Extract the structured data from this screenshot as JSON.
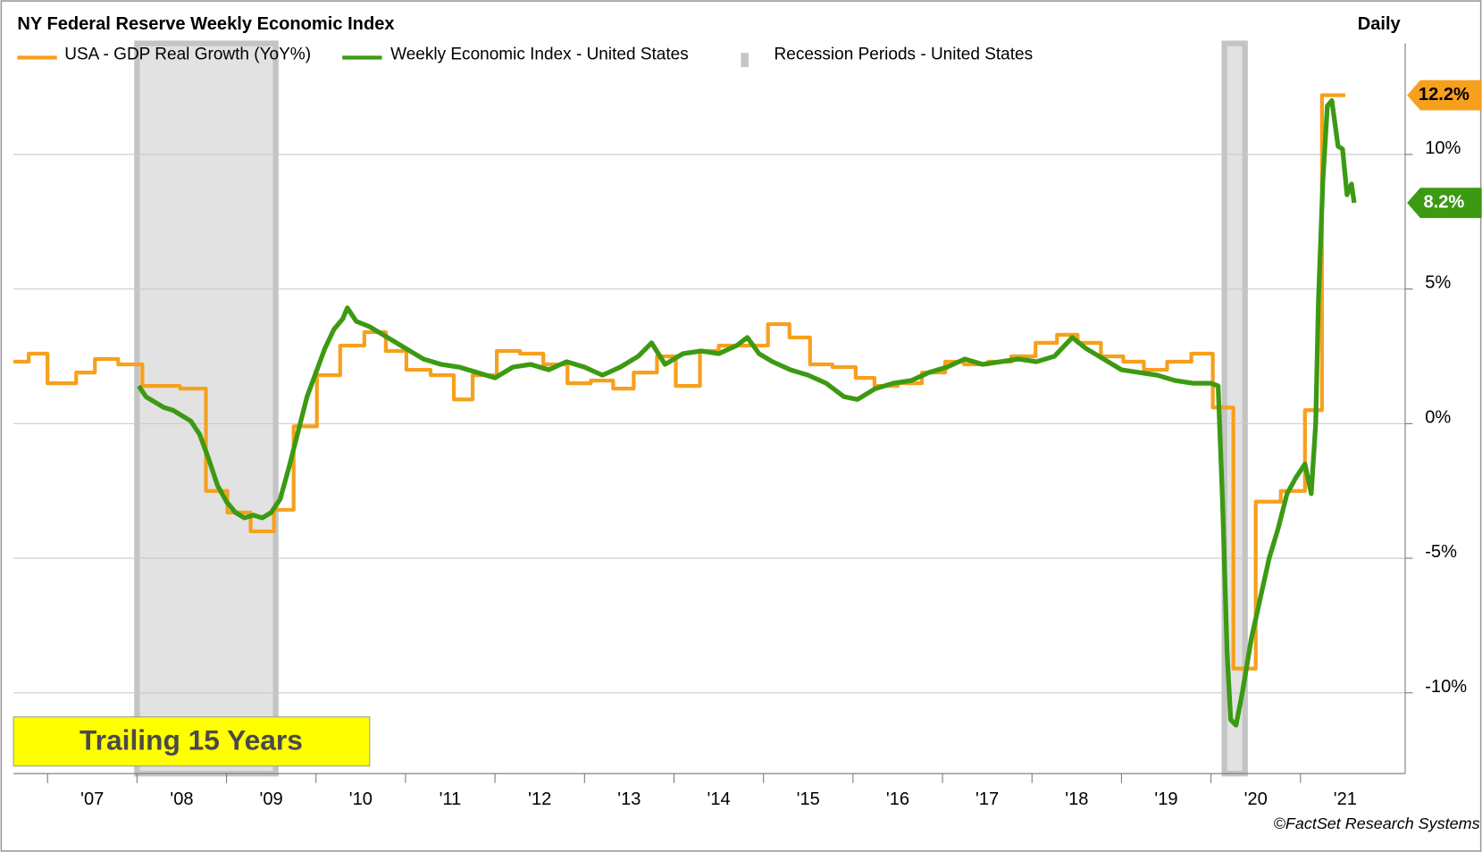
{
  "chart_data": {
    "type": "line",
    "title": "NY Federal Reserve Weekly Economic Index",
    "frequency": "Daily",
    "annotation": "Trailing 15 Years",
    "credit": "©FactSet Research Systems",
    "xlim": [
      2006.62,
      2022.17
    ],
    "ylim": [
      -13,
      15
    ],
    "xticks": [
      {
        "value": 2007,
        "label": "'07"
      },
      {
        "value": 2008,
        "label": "'08"
      },
      {
        "value": 2009,
        "label": "'09"
      },
      {
        "value": 2010,
        "label": "'10"
      },
      {
        "value": 2011,
        "label": "'11"
      },
      {
        "value": 2012,
        "label": "'12"
      },
      {
        "value": 2013,
        "label": "'13"
      },
      {
        "value": 2014,
        "label": "'14"
      },
      {
        "value": 2015,
        "label": "'15"
      },
      {
        "value": 2016,
        "label": "'16"
      },
      {
        "value": 2017,
        "label": "'17"
      },
      {
        "value": 2018,
        "label": "'18"
      },
      {
        "value": 2019,
        "label": "'19"
      },
      {
        "value": 2020,
        "label": "'20"
      },
      {
        "value": 2021,
        "label": "'21"
      }
    ],
    "yticks": [
      {
        "value": -10,
        "label": "-10%"
      },
      {
        "value": -5,
        "label": "-5%"
      },
      {
        "value": 0,
        "label": "0%"
      },
      {
        "value": 5,
        "label": "5%"
      },
      {
        "value": 10,
        "label": "10%"
      }
    ],
    "grid": true,
    "recessions": {
      "name": "Recession Periods - United States",
      "color": "#e2e2e2",
      "periods": [
        [
          2008.0,
          2009.55
        ],
        [
          2020.15,
          2020.38
        ]
      ]
    },
    "series": [
      {
        "name": "USA - GDP Real Growth (YoY%)",
        "color": "#f7a01d",
        "step": true,
        "x": [
          2006.62,
          2006.79,
          2007.0,
          2007.32,
          2007.53,
          2007.79,
          2008.06,
          2008.48,
          2008.77,
          2009.01,
          2009.27,
          2009.53,
          2009.75,
          2010.01,
          2010.27,
          2010.54,
          2010.78,
          2011.01,
          2011.28,
          2011.54,
          2011.75,
          2012.02,
          2012.28,
          2012.54,
          2012.81,
          2013.07,
          2013.32,
          2013.55,
          2013.81,
          2014.02,
          2014.29,
          2014.5,
          2014.81,
          2015.05,
          2015.29,
          2015.52,
          2015.77,
          2016.03,
          2016.24,
          2016.5,
          2016.77,
          2017.03,
          2017.24,
          2017.51,
          2017.77,
          2018.04,
          2018.28,
          2018.51,
          2018.77,
          2019.02,
          2019.25,
          2019.51,
          2019.78,
          2020.02,
          2020.25,
          2020.5,
          2020.78,
          2021.05,
          2021.24,
          2021.5
        ],
        "values": [
          2.3,
          2.6,
          1.5,
          1.9,
          2.4,
          2.2,
          1.4,
          1.3,
          -2.5,
          -3.3,
          -4.0,
          -3.2,
          -0.1,
          1.8,
          2.9,
          3.4,
          2.7,
          2.0,
          1.8,
          0.9,
          1.8,
          2.7,
          2.6,
          2.2,
          1.5,
          1.6,
          1.3,
          1.9,
          2.5,
          1.4,
          2.7,
          2.9,
          2.9,
          3.7,
          3.2,
          2.2,
          2.1,
          1.7,
          1.4,
          1.5,
          1.9,
          2.3,
          2.2,
          2.3,
          2.5,
          3.0,
          3.3,
          3.0,
          2.5,
          2.3,
          2.0,
          2.3,
          2.6,
          0.6,
          -9.1,
          -2.9,
          -2.5,
          0.5,
          12.2,
          12.2
        ],
        "last_value_label": "12.2%",
        "label_text_color": "#000000"
      },
      {
        "name": "Weekly Economic Index - United States",
        "color": "#3c9a12",
        "step": false,
        "x": [
          2008.02,
          2008.1,
          2008.2,
          2008.3,
          2008.4,
          2008.5,
          2008.6,
          2008.7,
          2008.8,
          2008.9,
          2009.0,
          2009.1,
          2009.2,
          2009.3,
          2009.4,
          2009.5,
          2009.6,
          2009.7,
          2009.8,
          2009.9,
          2010.0,
          2010.1,
          2010.2,
          2010.3,
          2010.35,
          2010.45,
          2010.6,
          2010.75,
          2010.9,
          2011.05,
          2011.2,
          2011.4,
          2011.6,
          2011.8,
          2012.0,
          2012.2,
          2012.4,
          2012.6,
          2012.8,
          2013.0,
          2013.2,
          2013.4,
          2013.6,
          2013.75,
          2013.9,
          2014.1,
          2014.3,
          2014.5,
          2014.7,
          2014.82,
          2014.95,
          2015.1,
          2015.3,
          2015.5,
          2015.7,
          2015.9,
          2016.05,
          2016.25,
          2016.45,
          2016.65,
          2016.85,
          2017.05,
          2017.25,
          2017.45,
          2017.65,
          2017.85,
          2018.05,
          2018.25,
          2018.45,
          2018.6,
          2018.8,
          2019.0,
          2019.2,
          2019.4,
          2019.6,
          2019.8,
          2020.0,
          2020.08,
          2020.13,
          2020.18,
          2020.22,
          2020.28,
          2020.35,
          2020.45,
          2020.55,
          2020.65,
          2020.75,
          2020.85,
          2020.95,
          2021.05,
          2021.12,
          2021.17,
          2021.2,
          2021.25,
          2021.3,
          2021.35,
          2021.42,
          2021.47,
          2021.52,
          2021.57,
          2021.6
        ],
        "values": [
          1.4,
          1.0,
          0.8,
          0.6,
          0.5,
          0.3,
          0.1,
          -0.4,
          -1.3,
          -2.3,
          -2.9,
          -3.3,
          -3.5,
          -3.4,
          -3.5,
          -3.3,
          -2.8,
          -1.6,
          -0.3,
          1.0,
          1.9,
          2.8,
          3.5,
          3.9,
          4.3,
          3.8,
          3.6,
          3.3,
          3.0,
          2.7,
          2.4,
          2.2,
          2.1,
          1.9,
          1.7,
          2.1,
          2.2,
          2.0,
          2.3,
          2.1,
          1.8,
          2.1,
          2.5,
          3.0,
          2.2,
          2.6,
          2.7,
          2.6,
          2.9,
          3.2,
          2.6,
          2.3,
          2.0,
          1.8,
          1.5,
          1.0,
          0.9,
          1.3,
          1.5,
          1.6,
          1.9,
          2.1,
          2.4,
          2.2,
          2.3,
          2.4,
          2.3,
          2.5,
          3.2,
          2.8,
          2.4,
          2.0,
          1.9,
          1.8,
          1.6,
          1.5,
          1.5,
          1.4,
          -3.0,
          -8.5,
          -11.0,
          -11.2,
          -10.0,
          -8.0,
          -6.5,
          -5.0,
          -3.9,
          -2.6,
          -2.0,
          -1.5,
          -2.6,
          0,
          4.5,
          9.0,
          11.8,
          12.0,
          10.3,
          10.2,
          8.5,
          8.9,
          8.2
        ],
        "last_value_label": "8.2%",
        "label_text_color": "#ffffff"
      }
    ]
  }
}
